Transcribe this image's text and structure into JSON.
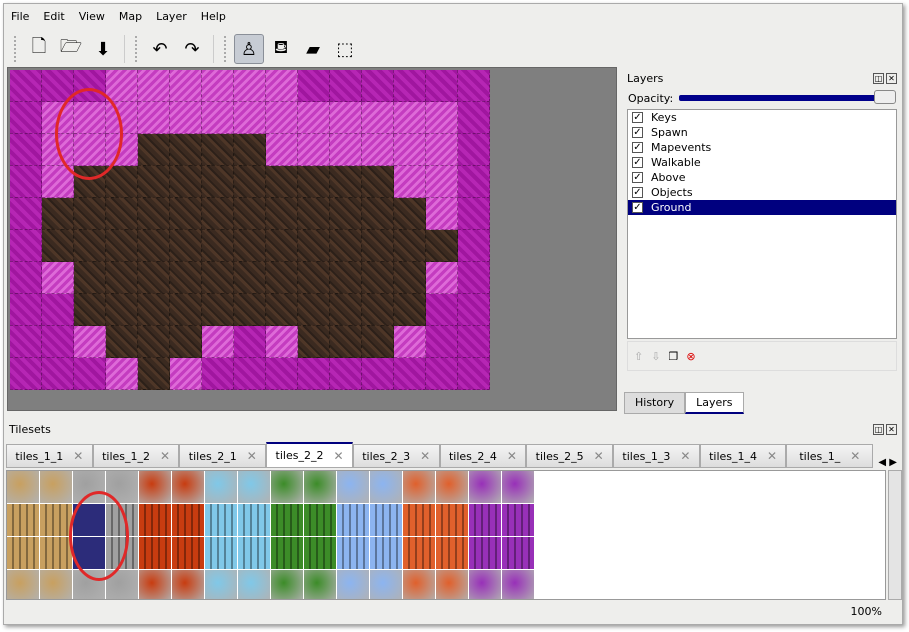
{
  "menu": [
    "File",
    "Edit",
    "View",
    "Map",
    "Layer",
    "Help"
  ],
  "toolbar": [
    {
      "name": "new-icon",
      "g": "🗋"
    },
    {
      "name": "open-icon",
      "g": "🗁"
    },
    {
      "name": "save-icon",
      "g": "⬇"
    },
    {
      "name": "undo-icon",
      "g": "↶"
    },
    {
      "name": "redo-icon",
      "g": "↷"
    },
    {
      "name": "stamp-brush-icon",
      "g": "♙",
      "active": true
    },
    {
      "name": "bucket-fill-icon",
      "g": "⛾"
    },
    {
      "name": "eraser-icon",
      "g": "▰"
    },
    {
      "name": "rect-select-icon",
      "g": "⬚"
    }
  ],
  "map_tiles": [
    "MMMPPPPPPMMMMMM",
    "MPPPPPPPPPPPPPM",
    "MPPPBBBBPPPPPPM",
    "MPBBBBBBBBBBPPM",
    "MBBBBBBBBBBBBPM",
    "MBBBBBBBBBBBBBM",
    "MPBBBBBBBBBBBPM",
    "MMBBBBBBBBBBBMM",
    "MMPBBBPMPBBBPMM",
    "MMMPBPMMMMMMMMM"
  ],
  "layers": {
    "title": "Layers",
    "opacity_label": "Opacity:",
    "opacity": 100,
    "items": [
      {
        "name": "Keys",
        "visible": true
      },
      {
        "name": "Spawn",
        "visible": true
      },
      {
        "name": "Mapevents",
        "visible": true
      },
      {
        "name": "Walkable",
        "visible": true
      },
      {
        "name": "Above",
        "visible": true
      },
      {
        "name": "Objects",
        "visible": true
      },
      {
        "name": "Ground",
        "visible": true,
        "selected": true
      }
    ]
  },
  "dock_tabs": [
    "History",
    "Layers"
  ],
  "tilesets": {
    "title": "Tilesets",
    "tabs": [
      "tiles_1_1",
      "tiles_1_2",
      "tiles_2_1",
      "tiles_2_2",
      "tiles_2_3",
      "tiles_2_4",
      "tiles_2_5",
      "tiles_1_3",
      "tiles_1_4",
      "tiles_1_"
    ],
    "active": "tiles_2_2",
    "palette": [
      "#c8a060",
      "#a0a0a0",
      "#c83c10",
      "#80c8e8",
      "#3c8c28",
      "#8cb4f0",
      "#e0602c",
      "#9830b8"
    ]
  },
  "status": {
    "zoom": "100%"
  }
}
